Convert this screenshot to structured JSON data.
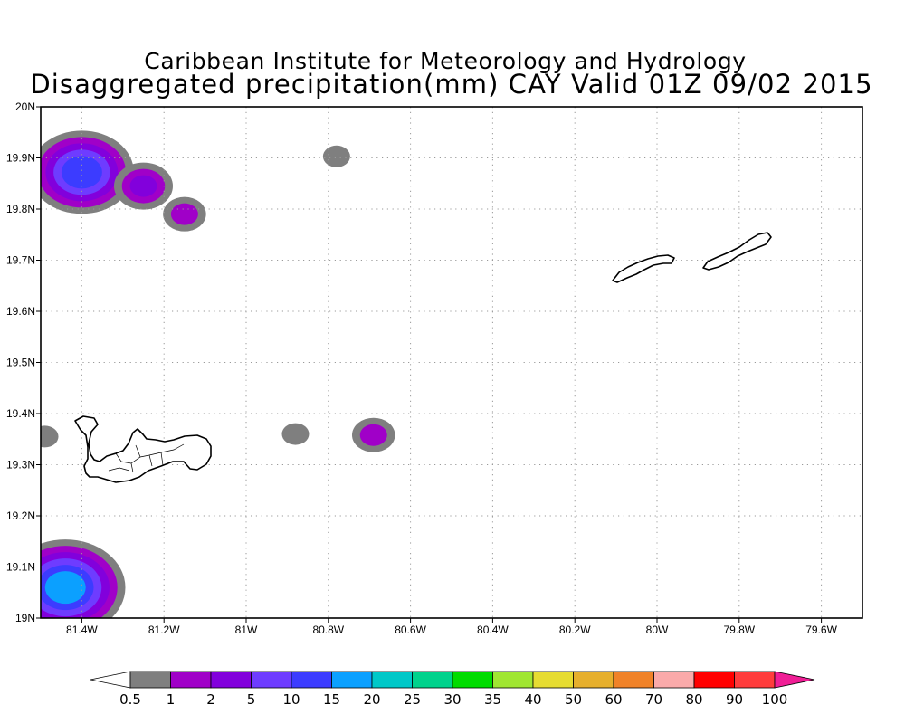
{
  "chart_data": {
    "type": "heatmap",
    "title_line1": "Caribbean Institute for Meteorology and Hydrology",
    "title_line2": "Disaggregated precipitation(mm) CAY Valid 01Z 09/02 2015",
    "units": "mm",
    "x_range": [
      -81.5,
      -79.5
    ],
    "y_range": [
      19.0,
      20.0
    ],
    "x_ticks": [
      {
        "value": -81.4,
        "label": "81.4W"
      },
      {
        "value": -81.2,
        "label": "81.2W"
      },
      {
        "value": -81.0,
        "label": "81W"
      },
      {
        "value": -80.8,
        "label": "80.8W"
      },
      {
        "value": -80.6,
        "label": "80.6W"
      },
      {
        "value": -80.4,
        "label": "80.4W"
      },
      {
        "value": -80.2,
        "label": "80.2W"
      },
      {
        "value": -80.0,
        "label": "80W"
      },
      {
        "value": -79.8,
        "label": "79.8W"
      },
      {
        "value": -79.6,
        "label": "79.6W"
      }
    ],
    "y_ticks": [
      {
        "value": 19.0,
        "label": "19N"
      },
      {
        "value": 19.1,
        "label": "19.1N"
      },
      {
        "value": 19.2,
        "label": "19.2N"
      },
      {
        "value": 19.3,
        "label": "19.3N"
      },
      {
        "value": 19.4,
        "label": "19.4N"
      },
      {
        "value": 19.5,
        "label": "19.5N"
      },
      {
        "value": 19.6,
        "label": "19.6N"
      },
      {
        "value": 19.7,
        "label": "19.7N"
      },
      {
        "value": 19.8,
        "label": "19.8N"
      },
      {
        "value": 19.9,
        "label": "19.9N"
      },
      {
        "value": 20.0,
        "label": "20N"
      }
    ],
    "grid": "dotted",
    "colorbar": {
      "labels": [
        "0.5",
        "1",
        "2",
        "5",
        "10",
        "15",
        "20",
        "25",
        "30",
        "35",
        "40",
        "50",
        "60",
        "70",
        "80",
        "90",
        "100"
      ],
      "colors": [
        "#ffffff",
        "#7f7f7f",
        "#a000c8",
        "#8200dc",
        "#6e3cff",
        "#3c3cff",
        "#0ba0ff",
        "#00c8c8",
        "#00d28c",
        "#00dc00",
        "#a0e632",
        "#e6dc32",
        "#e6af2d",
        "#f08228",
        "#faaaaa",
        "#ff0000",
        "#ff3c3c",
        "#f01e96"
      ]
    },
    "precip_cells": [
      {
        "lon": -81.4,
        "lat": 19.872,
        "value": 14
      },
      {
        "lon": -81.25,
        "lat": 19.845,
        "value": 3
      },
      {
        "lon": -81.15,
        "lat": 19.79,
        "value": 1.5
      },
      {
        "lon": -80.78,
        "lat": 19.903,
        "value": 0.7
      },
      {
        "lon": -80.69,
        "lat": 19.358,
        "value": 1.5
      },
      {
        "lon": -80.88,
        "lat": 19.36,
        "value": 0.7
      },
      {
        "lon": -81.49,
        "lat": 19.355,
        "value": 0.7
      },
      {
        "lon": -81.44,
        "lat": 19.06,
        "value": 16
      }
    ]
  }
}
